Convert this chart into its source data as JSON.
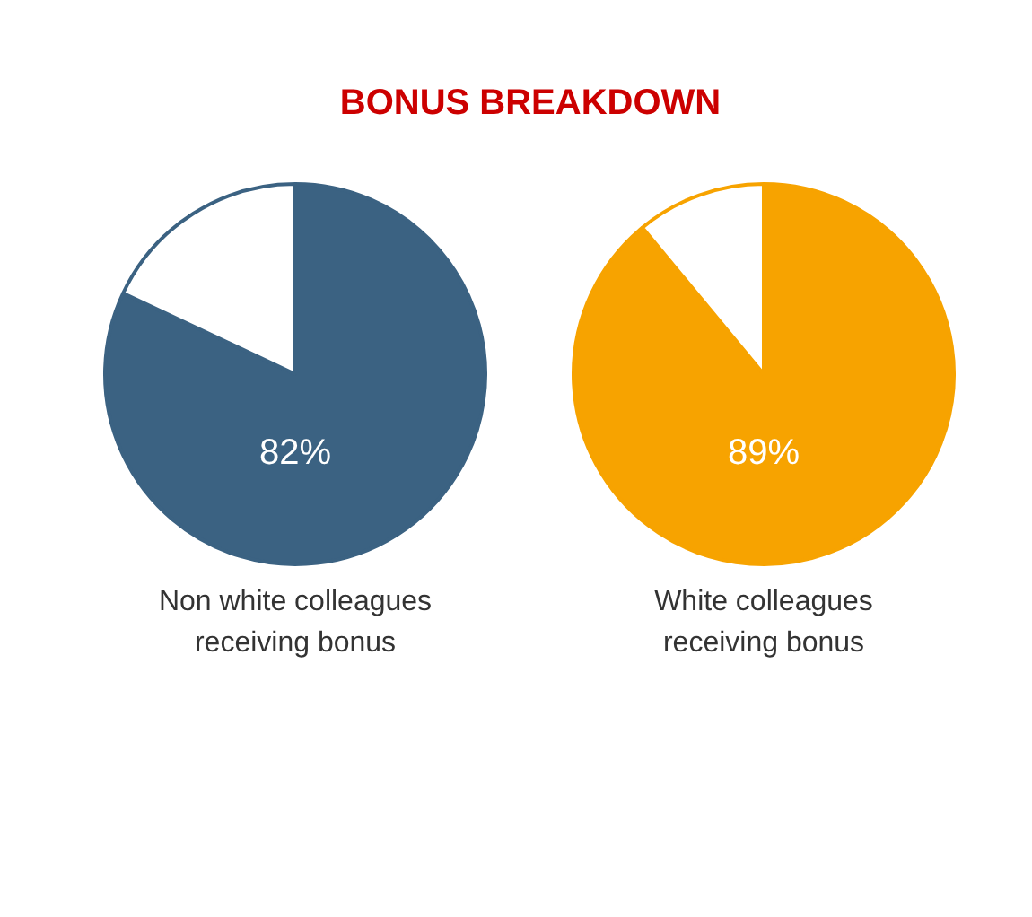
{
  "chart_data": [
    {
      "type": "pie",
      "title": "BONUS BREAKDOWN",
      "categories": [
        null,
        null
      ],
      "values": [
        82,
        18
      ],
      "colors": [
        "#3b6282",
        "#ffffff"
      ],
      "value_labels": [
        "82%",
        null
      ],
      "xlabel": "Non white colleagues\nreceiving bonus"
    },
    {
      "type": "pie",
      "categories": [
        null,
        null
      ],
      "values": [
        89,
        11
      ],
      "colors": [
        "#f7a300",
        "#ffffff"
      ],
      "value_labels": [
        "89%",
        null
      ],
      "xlabel": "White colleagues\nreceiving bonus"
    }
  ]
}
